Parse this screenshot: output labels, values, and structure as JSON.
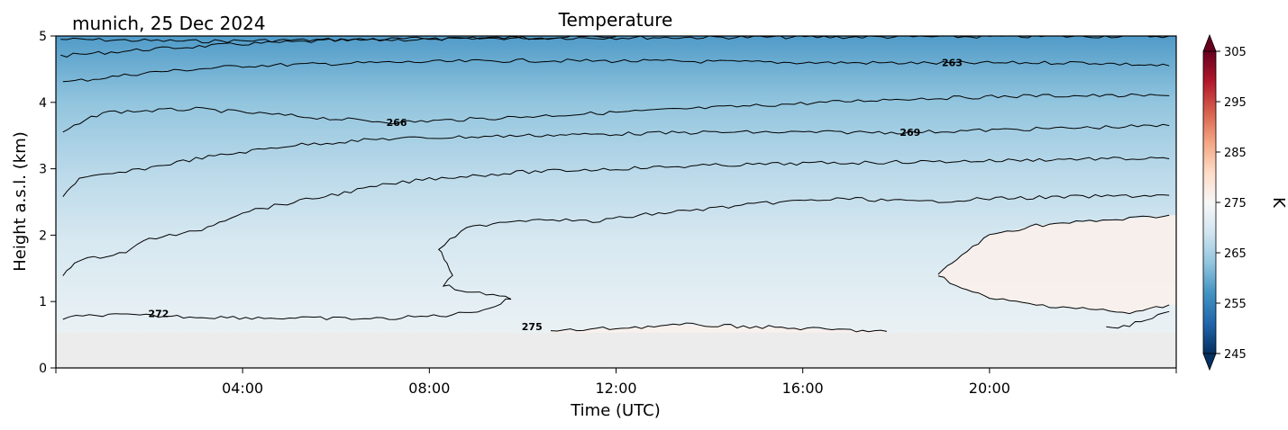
{
  "chart_data": {
    "type": "heatmap",
    "title": "Temperature",
    "subtitle": "munich, 25 Dec 2024",
    "xlabel": "Time (UTC)",
    "ylabel": "Height a.s.l. (km)",
    "xlim_hours": [
      0,
      24
    ],
    "ylim_km": [
      0,
      5
    ],
    "x_ticks": [
      {
        "hour": 4,
        "label": "04:00"
      },
      {
        "hour": 8,
        "label": "08:00"
      },
      {
        "hour": 12,
        "label": "12:00"
      },
      {
        "hour": 16,
        "label": "16:00"
      },
      {
        "hour": 20,
        "label": "20:00"
      }
    ],
    "y_ticks": [
      {
        "value": 0,
        "label": "0"
      },
      {
        "value": 1,
        "label": "1"
      },
      {
        "value": 2,
        "label": "2"
      },
      {
        "value": 3,
        "label": "3"
      },
      {
        "value": 4,
        "label": "4"
      },
      {
        "value": 5,
        "label": "5"
      }
    ],
    "ground_level_km": 0.53,
    "colorbar": {
      "label": "K",
      "min": 245,
      "max": 305,
      "step": 2.5,
      "extend": "both",
      "ticks": [
        {
          "value": 245,
          "label": "245"
        },
        {
          "value": 255,
          "label": "255"
        },
        {
          "value": 265,
          "label": "265"
        },
        {
          "value": 275,
          "label": "275"
        },
        {
          "value": 285,
          "label": "285"
        },
        {
          "value": 295,
          "label": "295"
        },
        {
          "value": 305,
          "label": "305"
        }
      ],
      "colormap": [
        "#053061",
        "#2166ac",
        "#4393c3",
        "#92c5de",
        "#d1e5f0",
        "#f7f7f7",
        "#fddbc7",
        "#f4a582",
        "#d6604d",
        "#b2182b",
        "#67001f"
      ],
      "under_color": "#053061",
      "over_color": "#67001f"
    },
    "contours": [
      {
        "level": 260,
        "label": null,
        "points": [
          [
            0.1,
            4.95
          ],
          [
            3,
            4.92
          ],
          [
            8,
            4.96
          ],
          [
            12,
            4.99
          ]
        ]
      },
      {
        "level": 263,
        "label": "263",
        "label_at": [
          19.2,
          4.6
        ],
        "points": [
          [
            0.1,
            4.7
          ],
          [
            2,
            4.8
          ],
          [
            4,
            4.88
          ],
          [
            6,
            4.93
          ],
          [
            10,
            4.97
          ],
          [
            14,
            4.98
          ],
          [
            20,
            4.99
          ],
          [
            23.85,
            5.0
          ]
        ]
      },
      {
        "level": 263,
        "label": null,
        "points": [
          [
            0.15,
            4.3
          ],
          [
            2,
            4.45
          ],
          [
            4,
            4.55
          ],
          [
            7,
            4.6
          ],
          [
            10,
            4.63
          ],
          [
            13,
            4.62
          ],
          [
            16,
            4.6
          ],
          [
            19,
            4.59
          ],
          [
            22,
            4.6
          ],
          [
            23.85,
            4.55
          ]
        ]
      },
      {
        "level": 266,
        "label": "266",
        "label_at": [
          7.3,
          3.7
        ],
        "points": [
          [
            0.15,
            3.55
          ],
          [
            1,
            3.85
          ],
          [
            3,
            3.9
          ],
          [
            6,
            3.75
          ],
          [
            7.3,
            3.7
          ],
          [
            9,
            3.75
          ],
          [
            12,
            3.85
          ],
          [
            15,
            3.95
          ],
          [
            18,
            4.05
          ],
          [
            21,
            4.1
          ],
          [
            23.85,
            4.1
          ]
        ]
      },
      {
        "level": 269,
        "label": "269",
        "label_at": [
          18.3,
          3.55
        ],
        "points": [
          [
            0.15,
            2.6
          ],
          [
            0.5,
            2.85
          ],
          [
            1.5,
            2.95
          ],
          [
            3,
            3.15
          ],
          [
            5,
            3.35
          ],
          [
            7,
            3.45
          ],
          [
            10,
            3.5
          ],
          [
            14,
            3.55
          ],
          [
            18.3,
            3.55
          ],
          [
            21,
            3.6
          ],
          [
            23.85,
            3.65
          ]
        ]
      },
      {
        "level": 272,
        "label": null,
        "points": [
          [
            0.15,
            1.4
          ],
          [
            0.4,
            1.6
          ],
          [
            1.5,
            1.75
          ],
          [
            2,
            1.95
          ],
          [
            3,
            2.05
          ],
          [
            4,
            2.35
          ],
          [
            5.5,
            2.55
          ],
          [
            7,
            2.75
          ],
          [
            8,
            2.85
          ],
          [
            10,
            2.95
          ],
          [
            12,
            3.0
          ],
          [
            14,
            3.05
          ],
          [
            16,
            3.08
          ],
          [
            18,
            3.1
          ],
          [
            20,
            3.12
          ],
          [
            22,
            3.15
          ],
          [
            23.85,
            3.15
          ]
        ]
      },
      {
        "level": 272,
        "label": "272",
        "label_at": [
          2.2,
          0.82
        ],
        "points": [
          [
            0.15,
            0.75
          ],
          [
            1,
            0.8
          ],
          [
            3,
            0.77
          ],
          [
            5,
            0.75
          ],
          [
            7,
            0.74
          ],
          [
            8.5,
            0.8
          ],
          [
            9.3,
            0.9
          ],
          [
            9.75,
            1.05
          ],
          [
            9.5,
            1.1
          ],
          [
            8.8,
            1.15
          ],
          [
            8.3,
            1.25
          ],
          [
            8.5,
            1.4
          ],
          [
            8.2,
            1.8
          ],
          [
            8.8,
            2.1
          ],
          [
            9.5,
            2.2
          ],
          [
            10.5,
            2.25
          ],
          [
            11.5,
            2.2
          ],
          [
            12.5,
            2.3
          ],
          [
            14,
            2.4
          ],
          [
            15.5,
            2.5
          ],
          [
            17,
            2.55
          ],
          [
            18.5,
            2.5
          ],
          [
            20,
            2.55
          ],
          [
            22,
            2.58
          ],
          [
            23.85,
            2.6
          ]
        ]
      },
      {
        "level": 275,
        "label": "275",
        "label_at": [
          10.2,
          0.62
        ],
        "points": [
          [
            10.6,
            0.55
          ],
          [
            12,
            0.6
          ],
          [
            13.5,
            0.65
          ],
          [
            15,
            0.62
          ],
          [
            16.5,
            0.58
          ],
          [
            17.8,
            0.55
          ]
        ]
      },
      {
        "level": 275,
        "label": null,
        "points": [
          [
            18.9,
            1.4
          ],
          [
            19.4,
            1.7
          ],
          [
            20,
            2.0
          ],
          [
            21,
            2.15
          ],
          [
            22,
            2.2
          ],
          [
            23,
            2.25
          ],
          [
            23.85,
            2.3
          ]
        ]
      },
      {
        "level": 275,
        "label": null,
        "points": [
          [
            18.9,
            1.4
          ],
          [
            19.4,
            1.2
          ],
          [
            20,
            1.05
          ],
          [
            21,
            0.95
          ],
          [
            22,
            0.9
          ],
          [
            23,
            0.82
          ],
          [
            23.85,
            0.95
          ]
        ]
      },
      {
        "level": 272,
        "label": null,
        "points": [
          [
            22.5,
            0.6
          ],
          [
            23,
            0.65
          ],
          [
            23.85,
            0.85
          ]
        ]
      }
    ]
  }
}
